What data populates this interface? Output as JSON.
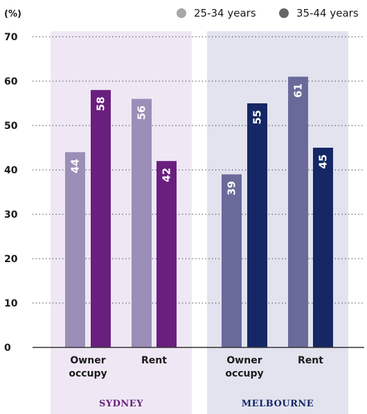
{
  "chart_data": {
    "type": "bar",
    "unit_label": "(%)",
    "ylim": [
      0,
      70
    ],
    "yticks": [
      0,
      10,
      20,
      30,
      40,
      50,
      60,
      70
    ],
    "grid": true,
    "legend_position": "top-right",
    "legend": [
      {
        "label": "25-34 years",
        "color": "#a7a7a7"
      },
      {
        "label": "35-44 years",
        "color": "#666666"
      }
    ],
    "groups": [
      {
        "name": "SYDNEY",
        "panel_color": "#efe8f4",
        "label_color": "#6a1f7e",
        "categories": [
          "Owner occupy",
          "Rent"
        ],
        "series": [
          {
            "legend_index": 0,
            "color": "#9b8eb8",
            "values": [
              44,
              56
            ]
          },
          {
            "legend_index": 1,
            "color": "#6a1f7e",
            "values": [
              58,
              42
            ]
          }
        ]
      },
      {
        "name": "MELBOURNE",
        "panel_color": "#e2e3ef",
        "label_color": "#152764",
        "categories": [
          "Owner occupy",
          "Rent"
        ],
        "series": [
          {
            "legend_index": 0,
            "color": "#6a6a9a",
            "values": [
              39,
              61
            ]
          },
          {
            "legend_index": 1,
            "color": "#152764",
            "values": [
              55,
              45
            ]
          }
        ]
      }
    ]
  }
}
